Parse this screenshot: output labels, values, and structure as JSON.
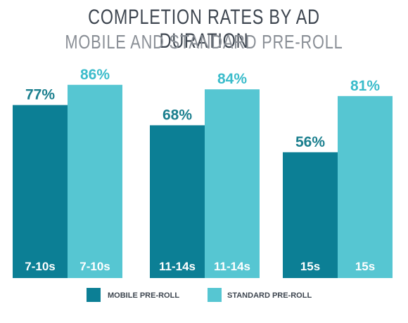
{
  "chart_data": {
    "type": "bar",
    "title": "COMPLETION RATES BY AD DURATION",
    "subtitle": "MOBILE AND STANDARD PRE-ROLL",
    "xlabel": "",
    "ylabel": "",
    "ylim": [
      0,
      100
    ],
    "grid": false,
    "legend_position": "bottom",
    "categories": [
      "7-10s",
      "11-14s",
      "15s"
    ],
    "series": [
      {
        "name": "MOBILE PRE-ROLL",
        "color": "#0c7f95",
        "values": [
          77,
          68,
          56
        ],
        "labels": [
          "77%",
          "68%",
          "56%"
        ]
      },
      {
        "name": "STANDARD PRE-ROLL",
        "color": "#56c6d2",
        "values": [
          86,
          84,
          81
        ],
        "labels": [
          "86%",
          "84%",
          "81%"
        ]
      }
    ]
  }
}
